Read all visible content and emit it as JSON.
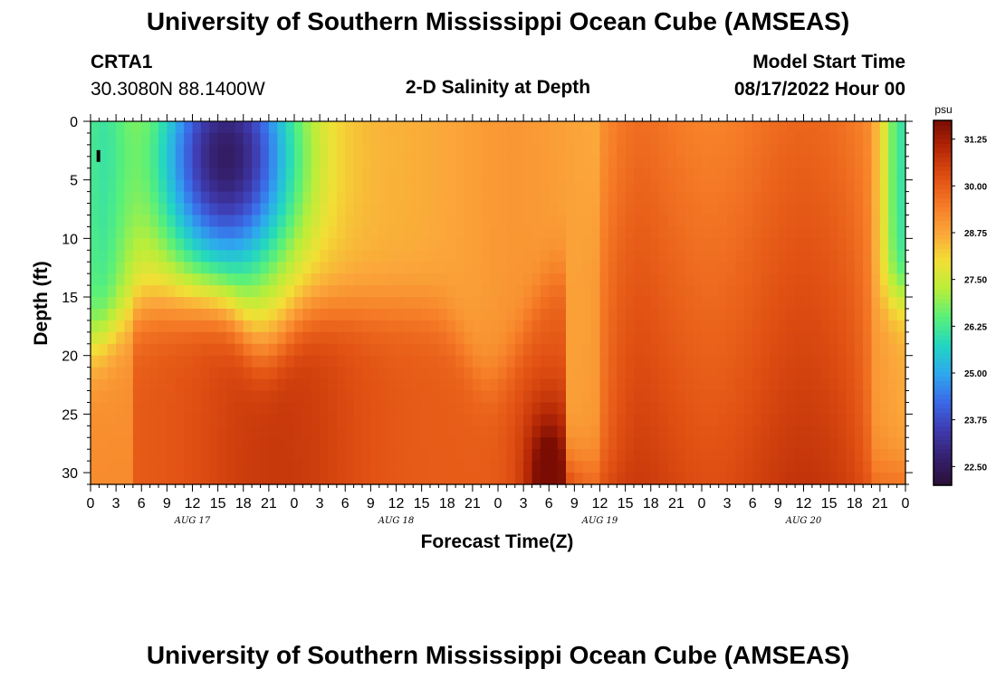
{
  "page": {
    "title_top": "University of Southern Mississippi Ocean Cube (AMSEAS)",
    "title_bottom": "University of Southern Mississippi Ocean Cube (AMSEAS)",
    "station": "CRTA1",
    "coords": "30.3080N  88.1400W",
    "subtitle": "2-D Salinity at Depth",
    "model_label": "Model Start Time",
    "model_time": "08/17/2022 Hour 00"
  },
  "chart_data": {
    "type": "heatmap",
    "title": "2-D Salinity at Depth",
    "xlabel": "Forecast Time(Z)",
    "ylabel": "Depth (ft)",
    "xlim": [
      0,
      96
    ],
    "ylim": [
      0,
      31
    ],
    "x_ticks": [
      0,
      3,
      6,
      9,
      12,
      15,
      18,
      21,
      24,
      27,
      30,
      33,
      36,
      39,
      42,
      45,
      48,
      51,
      54,
      57,
      60,
      63,
      66,
      69,
      72,
      75,
      78,
      81,
      84,
      87,
      90,
      93,
      96
    ],
    "x_tick_labels": [
      "0",
      "3",
      "6",
      "9",
      "12",
      "15",
      "18",
      "21",
      "0",
      "3",
      "6",
      "9",
      "12",
      "15",
      "18",
      "21",
      "0",
      "3",
      "6",
      "9",
      "12",
      "15",
      "18",
      "21",
      "0",
      "3",
      "6",
      "9",
      "12",
      "15",
      "18",
      "21",
      "0"
    ],
    "date_labels": [
      {
        "hour": 12,
        "label": "AUG 17"
      },
      {
        "hour": 36,
        "label": "AUG 18"
      },
      {
        "hour": 60,
        "label": "AUG 19"
      },
      {
        "hour": 84,
        "label": "AUG 20"
      }
    ],
    "y_ticks": [
      0,
      5,
      10,
      15,
      20,
      25,
      30
    ],
    "y_tick_labels": [
      "0",
      "5",
      "10",
      "15",
      "20",
      "25",
      "30"
    ],
    "colorbar": {
      "unit": "psu",
      "min": 22.0,
      "max": 31.75,
      "tick_values": [
        31.25,
        30.0,
        28.75,
        27.5,
        26.25,
        25.0,
        23.75,
        22.5
      ],
      "tick_labels": [
        "31.25",
        "30.00",
        "28.75",
        "27.50",
        "26.25",
        "25.00",
        "23.75",
        "22.50"
      ],
      "colors": [
        "#2a0f36",
        "#35206e",
        "#3f3bb0",
        "#3b6ae8",
        "#2ea8ee",
        "#22d6c2",
        "#58f07a",
        "#b8ee3a",
        "#f2df35",
        "#fba63a",
        "#f57a26",
        "#e04f12",
        "#b62806",
        "#7a0c03"
      ]
    },
    "marker": {
      "hour": 0.5,
      "depth": 3,
      "label": "I"
    },
    "field_description": "salinity field in psu over forecast hour (x) and depth in ft (y)",
    "fresh_lens": {
      "x_start": 6,
      "x_end": 25,
      "depth_bottom": 15,
      "min_value": 22.5
    },
    "fresh_lens_east": {
      "x_start": 93,
      "x_end": 96,
      "depth_bottom": 16,
      "min_value": 26.0
    },
    "salt_core": {
      "hour": 54,
      "depth": 30,
      "max_value": 31.5
    }
  }
}
